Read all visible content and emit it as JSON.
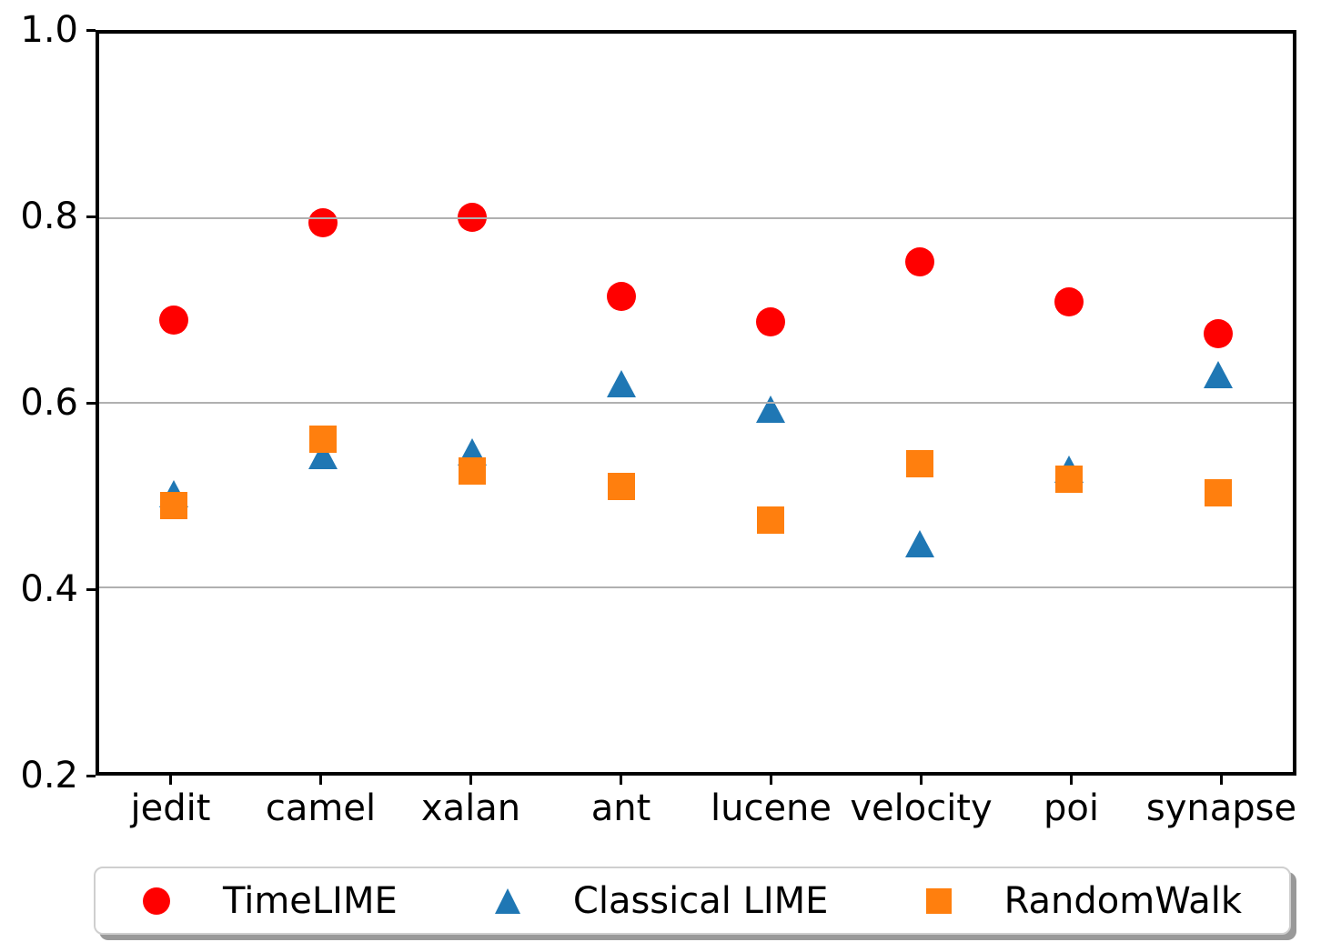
{
  "chart_data": {
    "type": "scatter",
    "categories": [
      "jedit",
      "camel",
      "xalan",
      "ant",
      "lucene",
      "velocity",
      "poi",
      "synapse"
    ],
    "series": [
      {
        "name": "TimeLIME",
        "marker": "circle",
        "color": "#ff0000",
        "values": [
          0.69,
          0.795,
          0.801,
          0.715,
          0.688,
          0.753,
          0.709,
          0.675
        ]
      },
      {
        "name": "Classical LIME",
        "marker": "triangle",
        "color": "#1f77b4",
        "values": [
          0.501,
          0.543,
          0.547,
          0.621,
          0.593,
          0.447,
          0.528,
          0.631
        ]
      },
      {
        "name": "RandomWalk",
        "marker": "square",
        "color": "#ff7f0e",
        "values": [
          0.489,
          0.561,
          0.526,
          0.509,
          0.473,
          0.534,
          0.517,
          0.502
        ]
      }
    ],
    "title": "",
    "xlabel": "",
    "ylabel": "",
    "ylim": [
      0.2,
      1.0
    ],
    "yticks": [
      1.0,
      0.8,
      0.6,
      0.4,
      0.2
    ],
    "ytick_labels": [
      "1.0",
      "0.8",
      "0.6",
      "0.4",
      "0.2"
    ],
    "grid": "horizontal, on top of markers",
    "gridline_color": "#b0b0b0",
    "legend_position": "bottom, horizontal row with shadow box"
  }
}
